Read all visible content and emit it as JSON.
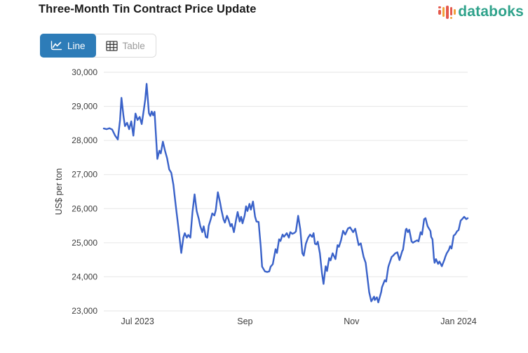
{
  "header": {
    "title": "Three-Month Tin Contract Price Update",
    "logo_text": "databoks"
  },
  "toolbar": {
    "line_label": "Line",
    "table_label": "Table"
  },
  "colors": {
    "line": "#3a62c9",
    "active_btn": "#2d7cb8",
    "grid": "#e6e6e6",
    "axis_text": "#3c3c3c",
    "logo_teal": "#2fa28b",
    "logo_red": "#e4584c",
    "logo_orange": "#f2a33a"
  },
  "chart_data": {
    "type": "line",
    "title": "Three-Month Tin Contract Price Update",
    "xlabel": "",
    "ylabel": "US$ per ton",
    "ylim": [
      23000,
      30000
    ],
    "grid": true,
    "legend_position": "none",
    "x_unit": "days since first observation (approx. mid-June 2023)",
    "x_range": [
      0,
      208
    ],
    "x_ticks": [
      {
        "d": 19.3,
        "label": "Jul 2023"
      },
      {
        "d": 80.7,
        "label": "Sep"
      },
      {
        "d": 141.6,
        "label": "Nov"
      },
      {
        "d": 202.8,
        "label": "Jan 2024"
      }
    ],
    "y_ticks": [
      {
        "v": 23000,
        "label": "23,000"
      },
      {
        "v": 24000,
        "label": "24,000"
      },
      {
        "v": 25000,
        "label": "25,000"
      },
      {
        "v": 26000,
        "label": "26,000"
      },
      {
        "v": 27000,
        "label": "27,000"
      },
      {
        "v": 28000,
        "label": "28,000"
      },
      {
        "v": 29000,
        "label": "29,000"
      },
      {
        "v": 30000,
        "label": "30,000"
      }
    ],
    "series": [
      {
        "name": "Three-month tin contract price",
        "color": "#3a62c9",
        "points": [
          [
            0,
            28350
          ],
          [
            1.6,
            28330
          ],
          [
            3.2,
            28360
          ],
          [
            4.8,
            28320
          ],
          [
            6.4,
            28150
          ],
          [
            8,
            28030
          ],
          [
            9.3,
            28600
          ],
          [
            10.1,
            29250
          ],
          [
            11.3,
            28700
          ],
          [
            12.1,
            28420
          ],
          [
            13.3,
            28520
          ],
          [
            14.5,
            28330
          ],
          [
            15.7,
            28560
          ],
          [
            16.9,
            28140
          ],
          [
            18.1,
            28790
          ],
          [
            19.3,
            28600
          ],
          [
            20.5,
            28690
          ],
          [
            21.7,
            28480
          ],
          [
            22.9,
            28900
          ],
          [
            23.7,
            29200
          ],
          [
            24.5,
            29660
          ],
          [
            25.8,
            28800
          ],
          [
            26.6,
            28720
          ],
          [
            27.4,
            28850
          ],
          [
            28.2,
            28740
          ],
          [
            29,
            28840
          ],
          [
            29.8,
            28150
          ],
          [
            30.6,
            27460
          ],
          [
            31.8,
            27700
          ],
          [
            32.6,
            27620
          ],
          [
            33.8,
            27965
          ],
          [
            35,
            27700
          ],
          [
            36.2,
            27480
          ],
          [
            37.4,
            27150
          ],
          [
            38.6,
            27050
          ],
          [
            39.8,
            26700
          ],
          [
            41,
            26150
          ],
          [
            42.3,
            25600
          ],
          [
            43.1,
            25250
          ],
          [
            44.3,
            24700
          ],
          [
            45.5,
            25150
          ],
          [
            46.3,
            25280
          ],
          [
            47.5,
            25150
          ],
          [
            48.3,
            25230
          ],
          [
            49.5,
            25150
          ],
          [
            50.7,
            25900
          ],
          [
            51.9,
            26420
          ],
          [
            53.1,
            25930
          ],
          [
            54.3,
            25700
          ],
          [
            55.1,
            25500
          ],
          [
            56.3,
            25310
          ],
          [
            57.1,
            25480
          ],
          [
            58.3,
            25170
          ],
          [
            59.2,
            25150
          ],
          [
            60,
            25500
          ],
          [
            61.2,
            25700
          ],
          [
            62,
            25860
          ],
          [
            63.2,
            25800
          ],
          [
            64,
            25950
          ],
          [
            65.2,
            26480
          ],
          [
            66.4,
            26200
          ],
          [
            67.2,
            25970
          ],
          [
            68.4,
            25690
          ],
          [
            69.2,
            25590
          ],
          [
            70.4,
            25790
          ],
          [
            71.2,
            25690
          ],
          [
            72.4,
            25480
          ],
          [
            73.2,
            25550
          ],
          [
            74.4,
            25310
          ],
          [
            75.7,
            25700
          ],
          [
            76.5,
            25900
          ],
          [
            77.7,
            25620
          ],
          [
            78.5,
            25760
          ],
          [
            79.3,
            25570
          ],
          [
            80.5,
            25800
          ],
          [
            81.3,
            26070
          ],
          [
            82.1,
            25930
          ],
          [
            83.3,
            26140
          ],
          [
            84.1,
            25970
          ],
          [
            85.3,
            26210
          ],
          [
            86.5,
            25760
          ],
          [
            87.3,
            25620
          ],
          [
            88.5,
            25610
          ],
          [
            89.7,
            24900
          ],
          [
            90.5,
            24300
          ],
          [
            92.1,
            24160
          ],
          [
            93.4,
            24140
          ],
          [
            94.6,
            24160
          ],
          [
            95.4,
            24300
          ],
          [
            96.6,
            24370
          ],
          [
            98.2,
            24810
          ],
          [
            99,
            24700
          ],
          [
            100.2,
            25100
          ],
          [
            101,
            25050
          ],
          [
            102.2,
            25240
          ],
          [
            103,
            25175
          ],
          [
            104.6,
            25280
          ],
          [
            105.8,
            25150
          ],
          [
            106.6,
            25310
          ],
          [
            107.8,
            25260
          ],
          [
            109,
            25290
          ],
          [
            109.8,
            25330
          ],
          [
            111.1,
            25790
          ],
          [
            112.3,
            25400
          ],
          [
            113.5,
            24690
          ],
          [
            114.3,
            24620
          ],
          [
            115.5,
            24970
          ],
          [
            116.7,
            25140
          ],
          [
            117.9,
            25240
          ],
          [
            119.1,
            25170
          ],
          [
            119.9,
            25280
          ],
          [
            120.7,
            24970
          ],
          [
            121.5,
            24950
          ],
          [
            122.3,
            25030
          ],
          [
            123.5,
            24690
          ],
          [
            124.7,
            24100
          ],
          [
            125.6,
            23790
          ],
          [
            126.8,
            24310
          ],
          [
            127.6,
            24170
          ],
          [
            128.8,
            24550
          ],
          [
            129.6,
            24480
          ],
          [
            130.8,
            24690
          ],
          [
            132.4,
            24520
          ],
          [
            133.6,
            24930
          ],
          [
            134.4,
            24880
          ],
          [
            135.6,
            25070
          ],
          [
            136.8,
            25350
          ],
          [
            138,
            25240
          ],
          [
            139.6,
            25420
          ],
          [
            140.8,
            25450
          ],
          [
            142.5,
            25310
          ],
          [
            143.7,
            25410
          ],
          [
            145.7,
            24930
          ],
          [
            146.9,
            24980
          ],
          [
            148.5,
            24590
          ],
          [
            149.7,
            24410
          ],
          [
            151.7,
            23550
          ],
          [
            152.9,
            23280
          ],
          [
            154.5,
            23420
          ],
          [
            154.9,
            23320
          ],
          [
            156.1,
            23400
          ],
          [
            156.9,
            23250
          ],
          [
            158.6,
            23560
          ],
          [
            159,
            23690
          ],
          [
            160.6,
            23900
          ],
          [
            161.4,
            23860
          ],
          [
            162.6,
            24280
          ],
          [
            163,
            24350
          ],
          [
            164.6,
            24590
          ],
          [
            165,
            24600
          ],
          [
            166.6,
            24690
          ],
          [
            167.8,
            24720
          ],
          [
            169,
            24490
          ],
          [
            170.6,
            24760
          ],
          [
            171,
            24790
          ],
          [
            172.6,
            25380
          ],
          [
            173,
            25410
          ],
          [
            173.8,
            25310
          ],
          [
            174.6,
            25380
          ],
          [
            175.9,
            25040
          ],
          [
            176.7,
            25000
          ],
          [
            177.9,
            25040
          ],
          [
            179.1,
            25070
          ],
          [
            179.9,
            25040
          ],
          [
            181.1,
            25310
          ],
          [
            181.9,
            25240
          ],
          [
            183.1,
            25690
          ],
          [
            183.9,
            25720
          ],
          [
            184.7,
            25550
          ],
          [
            185.1,
            25480
          ],
          [
            186.7,
            25340
          ],
          [
            187.1,
            25170
          ],
          [
            187.9,
            25100
          ],
          [
            188.7,
            24550
          ],
          [
            189.1,
            24410
          ],
          [
            189.9,
            24520
          ],
          [
            191.1,
            24380
          ],
          [
            191.9,
            24450
          ],
          [
            193.2,
            24310
          ],
          [
            194.8,
            24520
          ],
          [
            195.2,
            24590
          ],
          [
            196,
            24690
          ],
          [
            197.2,
            24790
          ],
          [
            198,
            24900
          ],
          [
            198.8,
            24830
          ],
          [
            200,
            25210
          ],
          [
            200.8,
            25240
          ],
          [
            202,
            25340
          ],
          [
            202.8,
            25370
          ],
          [
            204,
            25650
          ],
          [
            204.8,
            25690
          ],
          [
            206,
            25760
          ],
          [
            207.2,
            25690
          ],
          [
            208,
            25720
          ]
        ]
      }
    ]
  }
}
